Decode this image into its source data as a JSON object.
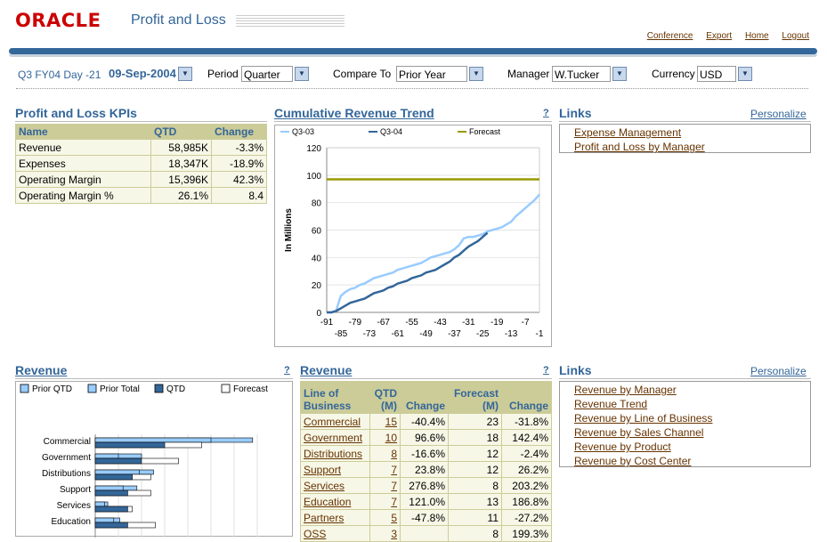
{
  "header": {
    "logo": "ORACLE",
    "app_title": "Profit and Loss",
    "links": [
      "Conference",
      "Export",
      "Home",
      "Logout"
    ]
  },
  "filters": {
    "date_label": "Q3 FY04 Day -21",
    "date_value": "09-Sep-2004",
    "period_label": "Period",
    "period_value": "Quarter",
    "compare_label": "Compare To",
    "compare_value": "Prior Year",
    "manager_label": "Manager",
    "manager_value": "W.Tucker",
    "currency_label": "Currency",
    "currency_value": "USD"
  },
  "kpi": {
    "title": "Profit and Loss KPIs",
    "headers": [
      "Name",
      "QTD",
      "Change"
    ],
    "rows": [
      [
        "Revenue",
        "58,985K",
        "-3.3%"
      ],
      [
        "Expenses",
        "18,347K",
        "-18.9%"
      ],
      [
        "Operating Margin",
        "15,396K",
        "42.3%"
      ],
      [
        "Operating Margin %",
        "26.1%",
        "8.4"
      ]
    ]
  },
  "trend": {
    "title": "Cumulative Revenue Trend",
    "help": "?",
    "ylabel": "In Millions",
    "legend": [
      "Q3-03",
      "Q3-04",
      "Forecast"
    ],
    "colors": {
      "q3_03": "#99ccff",
      "q3_04": "#336699",
      "forecast": "#999900"
    },
    "yticks": [
      "0",
      "20",
      "40",
      "60",
      "80",
      "100",
      "120"
    ],
    "xticks_top": [
      "-91",
      "-79",
      "-67",
      "-55",
      "-43",
      "-31",
      "-19",
      "-7"
    ],
    "xticks_bottom": [
      "-85",
      "-73",
      "-61",
      "-49",
      "-37",
      "-25",
      "-13",
      "-1"
    ]
  },
  "links1": {
    "title": "Links",
    "personalize": "Personalize",
    "items": [
      "Expense Management",
      "Profit and Loss by Manager"
    ]
  },
  "revenue_chart": {
    "title": "Revenue",
    "help": "?",
    "legend": [
      "Prior QTD",
      "Prior Total",
      "QTD",
      "Forecast"
    ],
    "colors": {
      "prior_qtd": "#99ccff",
      "prior_total": "#99ccff",
      "qtd": "#336699",
      "forecast": "#ffffff"
    },
    "categories": [
      "Commercial",
      "Government",
      "Distributions",
      "Support",
      "Services",
      "Education"
    ]
  },
  "revenue_table": {
    "title": "Revenue",
    "help": "?",
    "headers": [
      "Line of Business",
      "QTD (M)",
      "Change",
      "Forecast (M)",
      "Change"
    ],
    "rows": [
      [
        "Commercial",
        "15",
        "-40.4%",
        "23",
        "-31.8%"
      ],
      [
        "Government",
        "10",
        "96.6%",
        "18",
        "142.4%"
      ],
      [
        "Distributions",
        "8",
        "-16.6%",
        "12",
        "-2.4%"
      ],
      [
        "Support",
        "7",
        "23.8%",
        "12",
        "26.2%"
      ],
      [
        "Services",
        "7",
        "276.8%",
        "8",
        "203.2%"
      ],
      [
        "Education",
        "7",
        "121.0%",
        "13",
        "186.8%"
      ],
      [
        "Partners",
        "5",
        "-47.8%",
        "11",
        "-27.2%"
      ],
      [
        "OSS",
        "3",
        "",
        "8",
        "199.3%"
      ]
    ]
  },
  "links2": {
    "title": "Links",
    "personalize": "Personalize",
    "items": [
      "Revenue by Manager",
      "Revenue Trend",
      "Revenue by Line of Business",
      "Revenue by Sales Channel",
      "Revenue by Product",
      "Revenue by Cost Center"
    ]
  },
  "chart_data": [
    {
      "type": "line",
      "title": "Cumulative Revenue Trend",
      "ylabel": "In Millions",
      "ylim": [
        0,
        120
      ],
      "xlim": [
        -91,
        -1
      ],
      "legend": "top",
      "grid": true,
      "series": [
        {
          "name": "Q3-03",
          "x": [
            -91,
            -89,
            -87,
            -86,
            -85,
            -83,
            -81,
            -79,
            -77,
            -75,
            -73,
            -71,
            -69,
            -67,
            -65,
            -63,
            -61,
            -59,
            -57,
            -55,
            -53,
            -51,
            -49,
            -47,
            -45,
            -43,
            -41,
            -39,
            -37,
            -35,
            -33,
            -31,
            -29,
            -27,
            -25,
            -23,
            -21,
            -19,
            -17,
            -15,
            -13,
            -11,
            -9,
            -7,
            -5,
            -3,
            -1
          ],
          "y": [
            0,
            0,
            1,
            7,
            12,
            15,
            17,
            18,
            20,
            21,
            23,
            25,
            26,
            27,
            28,
            29,
            31,
            32,
            33,
            34,
            35,
            36,
            38,
            40,
            41,
            42,
            43,
            44,
            46,
            49,
            54,
            55,
            55,
            56,
            57,
            59,
            60,
            61,
            62,
            64,
            66,
            70,
            73,
            76,
            79,
            82,
            86
          ]
        },
        {
          "name": "Q3-04",
          "x": [
            -91,
            -89,
            -87,
            -85,
            -83,
            -81,
            -79,
            -77,
            -75,
            -73,
            -71,
            -69,
            -67,
            -65,
            -63,
            -61,
            -59,
            -57,
            -55,
            -53,
            -51,
            -49,
            -47,
            -45,
            -43,
            -41,
            -39,
            -37,
            -35,
            -33,
            -31,
            -29,
            -27,
            -25,
            -23
          ],
          "y": [
            0,
            0,
            1,
            3,
            5,
            7,
            8,
            9,
            10,
            12,
            14,
            15,
            16,
            18,
            19,
            21,
            22,
            23,
            25,
            26,
            27,
            29,
            30,
            31,
            33,
            35,
            37,
            40,
            42,
            45,
            48,
            50,
            52,
            55,
            58
          ]
        },
        {
          "name": "Forecast",
          "x": [
            -91,
            -1
          ],
          "y": [
            97,
            97
          ]
        }
      ]
    },
    {
      "type": "bar",
      "title": "Revenue",
      "categories": [
        "Commercial",
        "Government",
        "Distributions",
        "Support",
        "Services",
        "Education"
      ],
      "series": [
        {
          "name": "Prior QTD",
          "values": [
            25,
            5,
            9.5,
            6,
            2,
            4
          ]
        },
        {
          "name": "Prior Total",
          "values": [
            34,
            10,
            12.6,
            9,
            2.7,
            5.3
          ]
        },
        {
          "name": "QTD",
          "values": [
            15,
            10,
            8,
            7,
            7,
            7
          ]
        },
        {
          "name": "Forecast",
          "values": [
            23,
            18,
            12,
            12,
            8,
            13
          ]
        }
      ]
    }
  ]
}
